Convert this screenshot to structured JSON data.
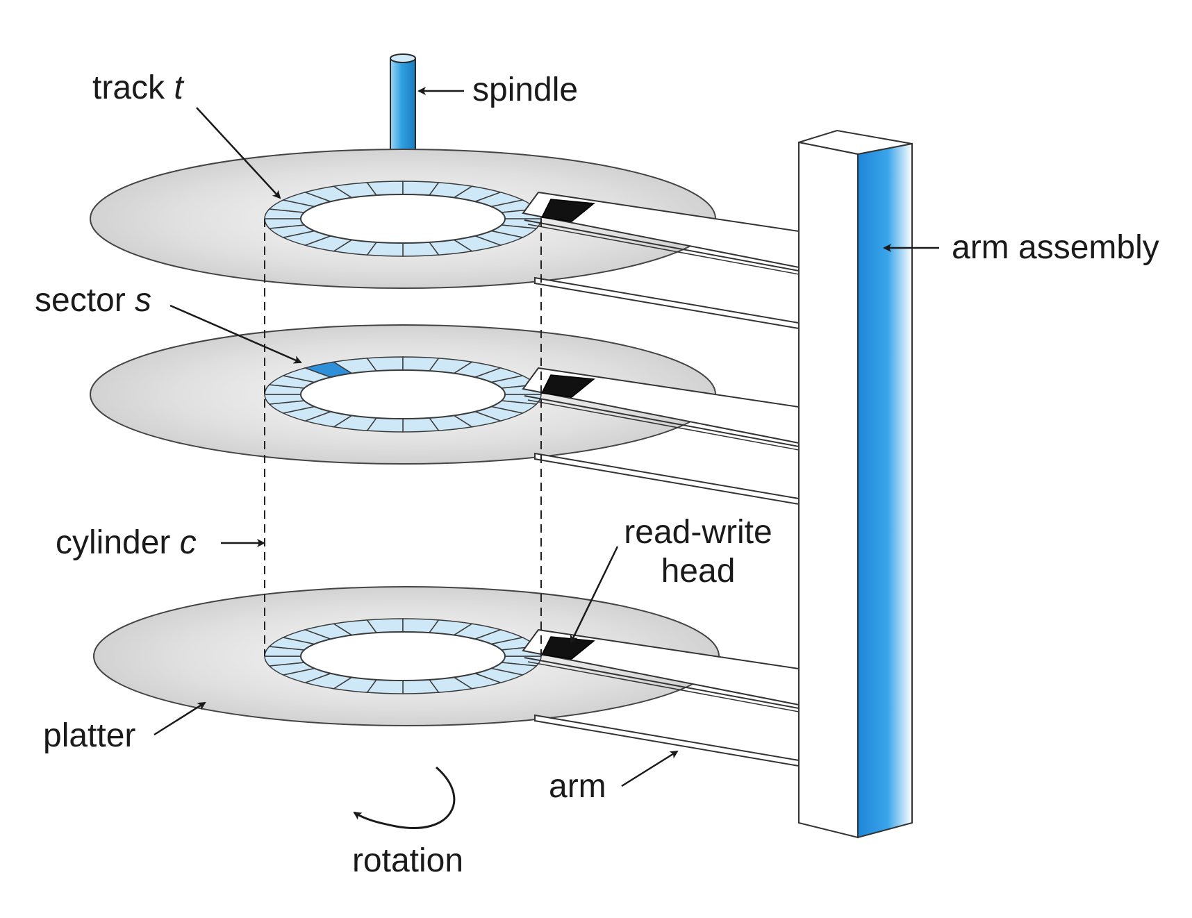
{
  "labels": {
    "track": {
      "text": "track ",
      "var": "t"
    },
    "spindle": "spindle",
    "arm_assembly": "arm assembly",
    "sector": {
      "text": "sector ",
      "var": "s"
    },
    "cylinder": {
      "text": "cylinder ",
      "var": "c"
    },
    "read_write_head_line1": "read-write",
    "read_write_head_line2": "head",
    "platter": "platter",
    "arm": "arm",
    "rotation": "rotation"
  },
  "colors": {
    "spindle_blue": "#2f9fe0",
    "track_fill": "#cfe8f7",
    "sector_highlight": "#2f8fd8",
    "platter_gray": "#dcdcdc",
    "head_black": "#111111"
  },
  "counts": {
    "platters": 3,
    "sectors_per_track": 24
  }
}
